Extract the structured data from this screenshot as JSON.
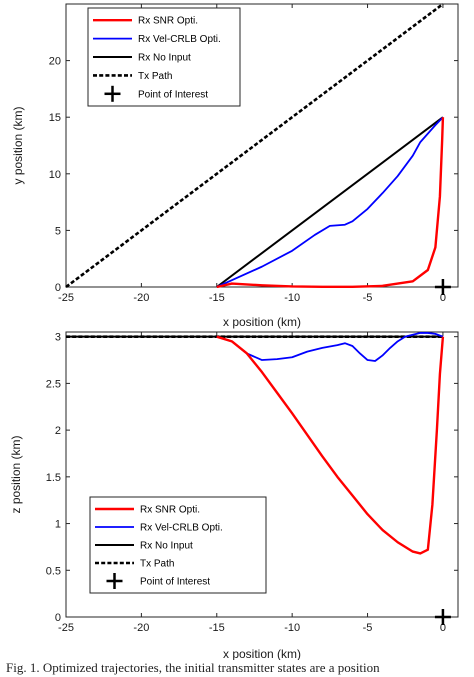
{
  "caption": "Fig. 1.  Optimized trajectories, the initial transmitter states are a position",
  "colors": {
    "snr": "#ff0000",
    "crlb": "#0000ff",
    "noinput": "#000000",
    "tx": "#000000",
    "poi": "#000000"
  },
  "chart_data": [
    {
      "type": "line",
      "title": "",
      "xlabel": "x position (km)",
      "ylabel": "y position (km)",
      "xlim": [
        -25,
        1
      ],
      "ylim": [
        0,
        25
      ],
      "xticks": [
        -25,
        -20,
        -15,
        -10,
        -5,
        0
      ],
      "yticks": [
        0,
        5,
        10,
        15,
        20
      ],
      "grid": false,
      "legend_position": "top-left",
      "series": [
        {
          "name": "Rx SNR Opti.",
          "style": "solid",
          "width": 2.4,
          "color_key": "snr",
          "x": [
            -15,
            -14,
            -12,
            -10,
            -8,
            -6,
            -4,
            -2,
            -1,
            -0.5,
            -0.2,
            -0.05,
            0
          ],
          "y": [
            0,
            0.3,
            0.15,
            0.05,
            0.02,
            0.02,
            0.1,
            0.5,
            1.5,
            3.5,
            8,
            13,
            15
          ]
        },
        {
          "name": "Rx Vel-CRLB Opti.",
          "style": "solid",
          "width": 1.8,
          "color_key": "crlb",
          "x": [
            -15,
            -14,
            -12,
            -10,
            -8.5,
            -7.5,
            -6.5,
            -6,
            -5,
            -4,
            -3,
            -2,
            -1.5,
            -0.5,
            0
          ],
          "y": [
            0,
            0.6,
            1.8,
            3.2,
            4.6,
            5.4,
            5.5,
            5.8,
            6.9,
            8.3,
            9.8,
            11.6,
            12.8,
            14.3,
            15
          ]
        },
        {
          "name": "Rx No Input",
          "style": "solid",
          "width": 2,
          "color_key": "noinput",
          "x": [
            -15,
            0
          ],
          "y": [
            0,
            15
          ]
        },
        {
          "name": "Tx Path",
          "style": "dashed",
          "width": 2.6,
          "color_key": "tx",
          "x": [
            -25,
            0
          ],
          "y": [
            0,
            25
          ]
        },
        {
          "name": "Point of Interest",
          "style": "marker",
          "color_key": "poi",
          "x": [
            0
          ],
          "y": [
            0
          ]
        }
      ]
    },
    {
      "type": "line",
      "title": "",
      "xlabel": "x position (km)",
      "ylabel": "z position (km)",
      "xlim": [
        -25,
        1
      ],
      "ylim": [
        0,
        3.05
      ],
      "xticks": [
        -25,
        -20,
        -15,
        -10,
        -5,
        0
      ],
      "yticks": [
        0,
        0.5,
        1,
        1.5,
        2,
        2.5,
        3
      ],
      "grid": false,
      "legend_position": "bottom-left",
      "series": [
        {
          "name": "Rx SNR Opti.",
          "style": "solid",
          "width": 2.4,
          "color_key": "snr",
          "x": [
            -15,
            -14,
            -13,
            -12,
            -11,
            -10,
            -9,
            -8,
            -7,
            -6,
            -5,
            -4,
            -3,
            -2,
            -1.5,
            -1,
            -0.7,
            -0.4,
            -0.2,
            0
          ],
          "y": [
            3,
            2.95,
            2.82,
            2.62,
            2.4,
            2.18,
            1.95,
            1.72,
            1.5,
            1.3,
            1.1,
            0.93,
            0.8,
            0.7,
            0.68,
            0.72,
            1.2,
            2,
            2.6,
            3
          ]
        },
        {
          "name": "Rx Vel-CRLB Opti.",
          "style": "solid",
          "width": 1.8,
          "color_key": "crlb",
          "x": [
            -15,
            -14,
            -13,
            -12,
            -11,
            -10,
            -9,
            -8,
            -7,
            -6.5,
            -6,
            -5.5,
            -5,
            -4.5,
            -4,
            -3.5,
            -3,
            -2.5,
            -2,
            -1.5,
            -1,
            -0.5,
            0
          ],
          "y": [
            3,
            2.95,
            2.82,
            2.75,
            2.76,
            2.78,
            2.84,
            2.88,
            2.91,
            2.93,
            2.9,
            2.82,
            2.75,
            2.74,
            2.8,
            2.88,
            2.95,
            3,
            3.02,
            3.04,
            3.04,
            3.03,
            3
          ]
        },
        {
          "name": "Rx No Input",
          "style": "solid",
          "width": 2,
          "color_key": "noinput",
          "x": [
            -25,
            0
          ],
          "y": [
            3,
            3
          ]
        },
        {
          "name": "Tx Path",
          "style": "dashed",
          "width": 2.6,
          "color_key": "tx",
          "x": [
            -25,
            0
          ],
          "y": [
            3,
            3
          ]
        },
        {
          "name": "Point of Interest",
          "style": "marker",
          "color_key": "poi",
          "x": [
            0
          ],
          "y": [
            0
          ]
        }
      ]
    }
  ]
}
